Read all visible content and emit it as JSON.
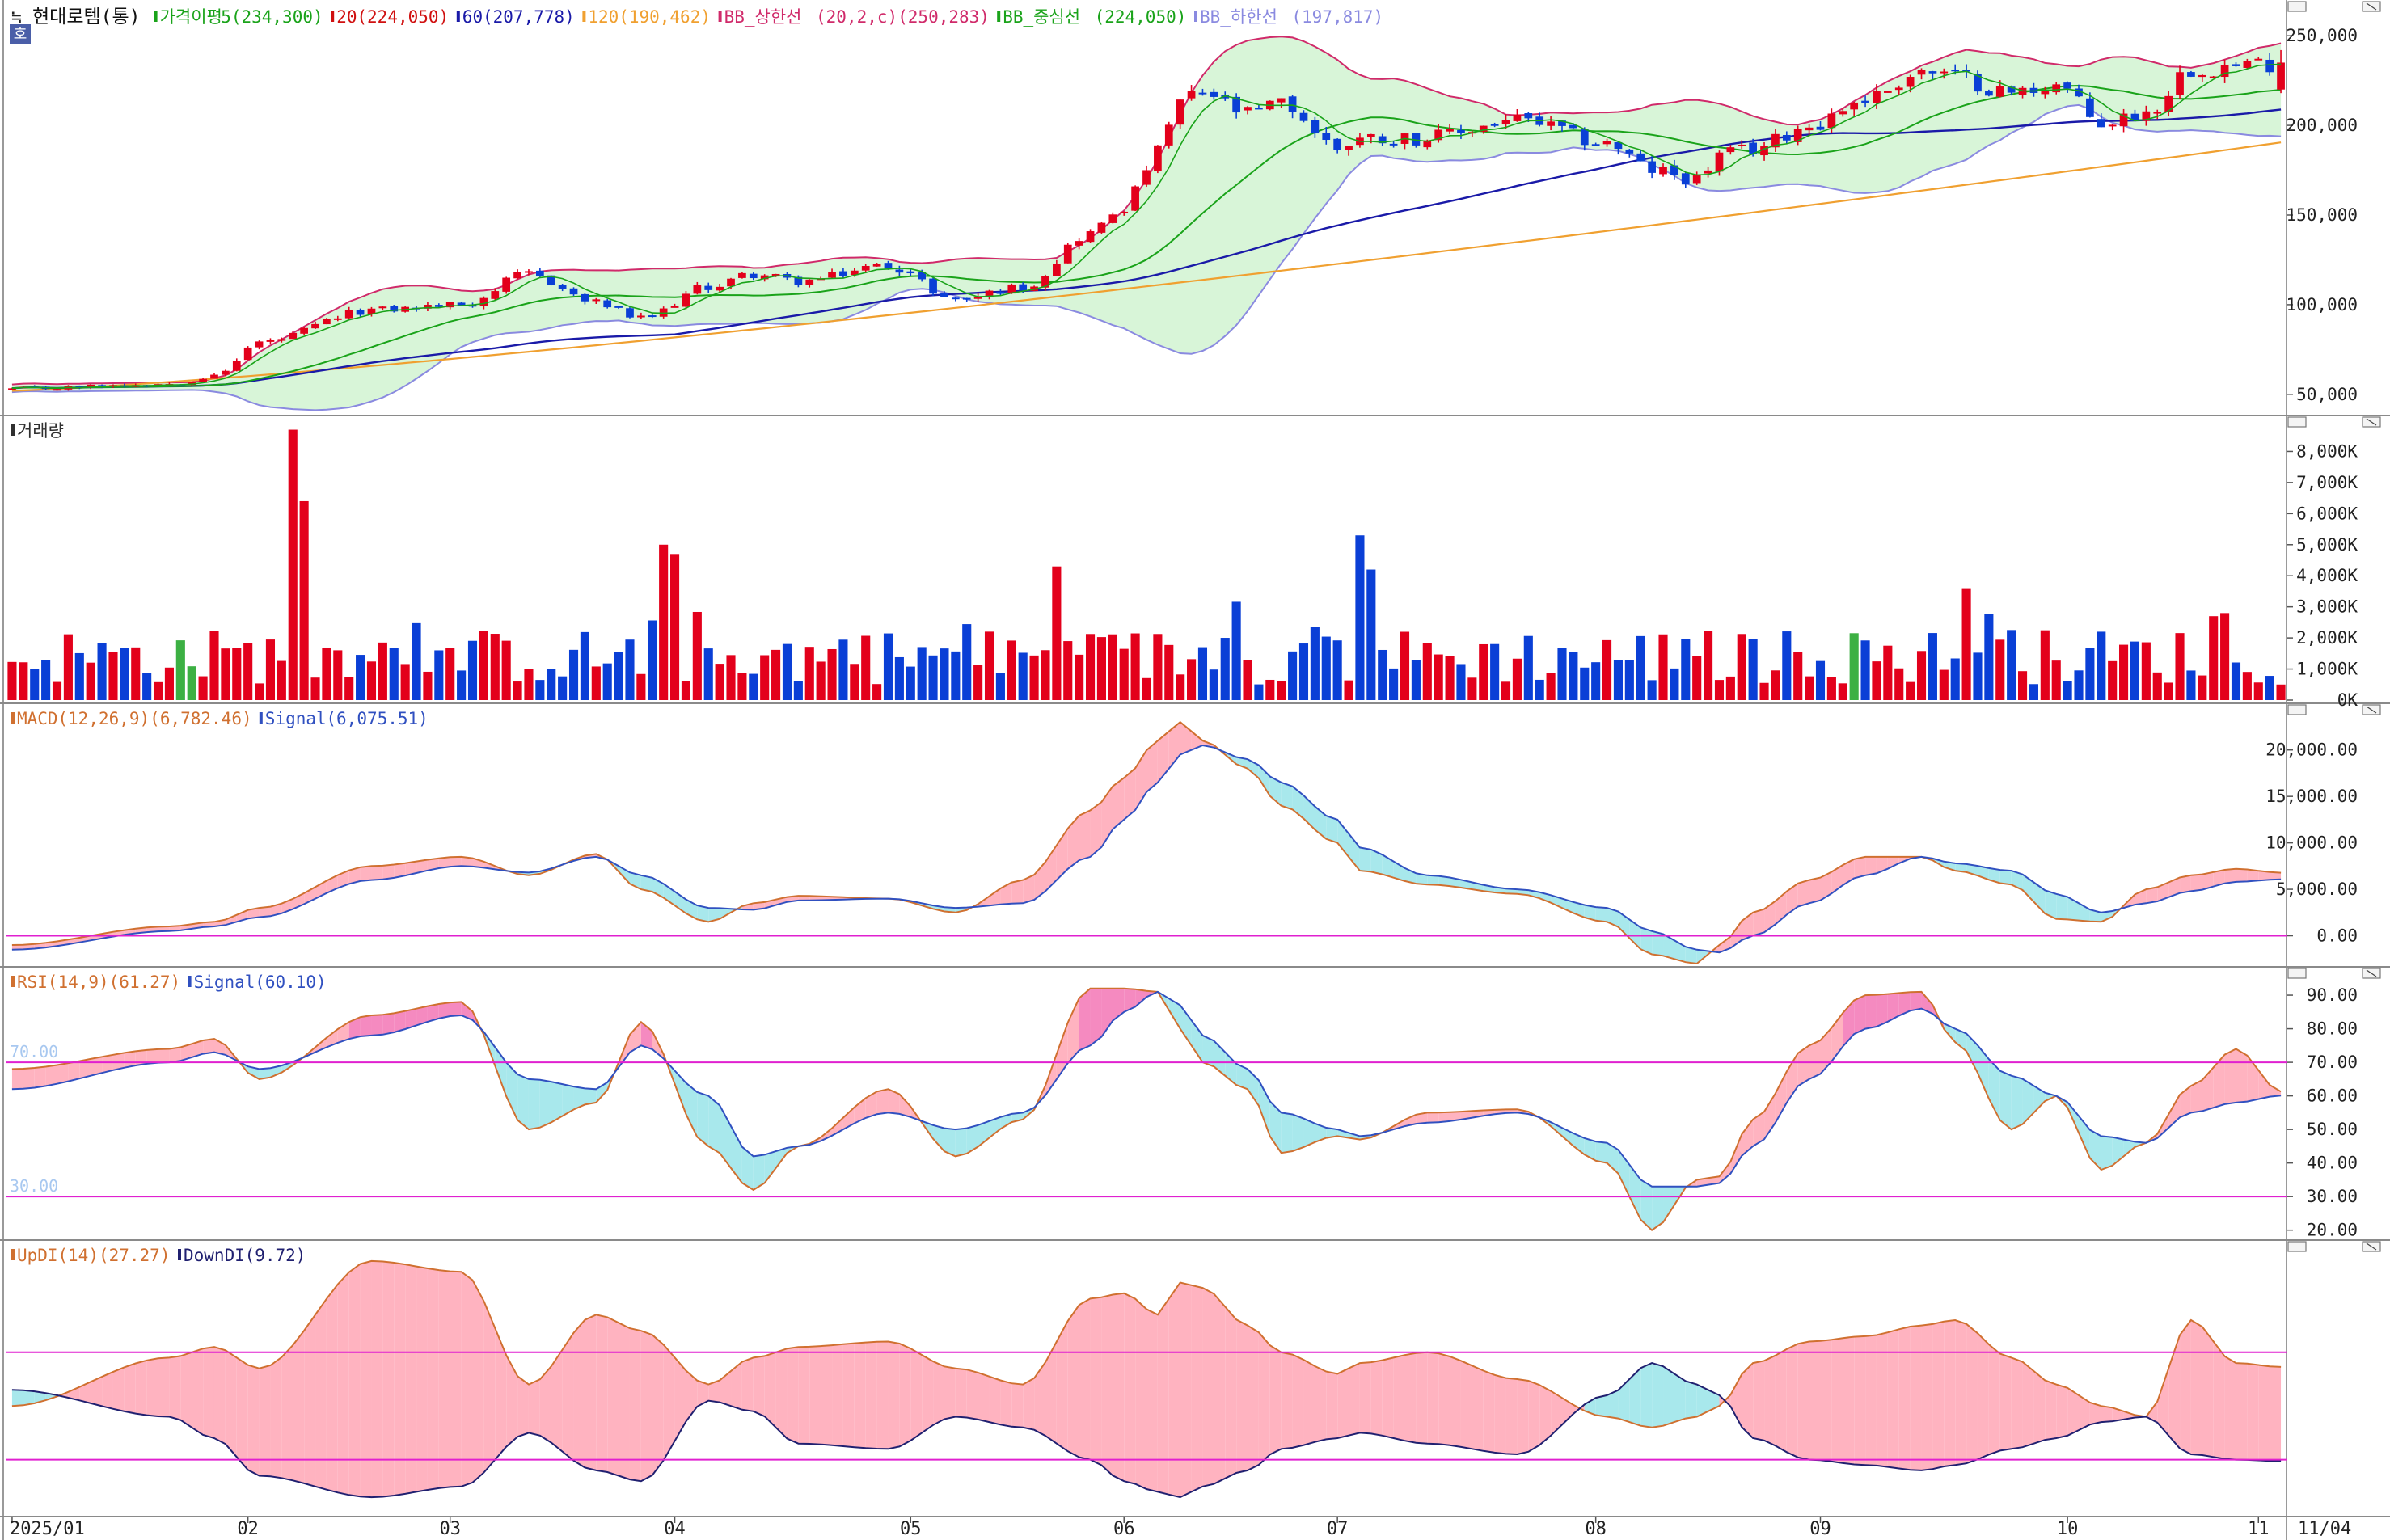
{
  "chart_data": {
    "type": "stock-indicator-chart",
    "stock_label": "현대로템(통)",
    "stock_marker": "≒",
    "period_badge": "호",
    "colors": {
      "up": "#e3001b",
      "down": "#0a3fd6",
      "flat": "#3cb043",
      "ma5": "#1aa31a",
      "ma20": "#d01010",
      "ma60": "#1a1aa8",
      "ma120": "#f0a030",
      "bb_upper": "#d02a6a",
      "bb_mid": "#1aa31a",
      "bb_lower": "#8a8ae0",
      "bb_fill": "#d8f5d8",
      "guide": "#e020d0",
      "pos_fill": "#ffb3c0",
      "neg_fill": "#a8e8ec",
      "rsi_strong": "#f58ac0",
      "macd_line": "#d07030",
      "signal_line": "#3050c0",
      "updi_line": "#d07030",
      "downdi_line": "#202070"
    },
    "price_legend": [
      {
        "label": "가격이평",
        "value": "5(234,300)",
        "color": "#1aa31a"
      },
      {
        "label": "20",
        "value": "(224,050)",
        "color": "#d01010"
      },
      {
        "label": "60",
        "value": "(207,778)",
        "color": "#1a1aa8"
      },
      {
        "label": "120",
        "value": "(190,462)",
        "color": "#f0a030"
      },
      {
        "label": "BB_상한선",
        "value": "(20,2,c)(250,283)",
        "color": "#d02a6a"
      },
      {
        "label": "BB_중심선",
        "value": "(224,050)",
        "color": "#1aa31a"
      },
      {
        "label": "BB_하한선",
        "value": "(197,817)",
        "color": "#8a8ae0"
      }
    ],
    "price_axis": {
      "ticks": [
        "250,000",
        "200,000",
        "150,000",
        "100,000",
        "50,000"
      ],
      "tick_values": [
        250000,
        200000,
        150000,
        100000,
        50000
      ],
      "ylim": [
        40000,
        260000
      ]
    },
    "volume_legend": [
      {
        "label": "거래량",
        "color": "#303030"
      }
    ],
    "volume_axis": {
      "ticks": [
        "8,000K",
        "7,000K",
        "6,000K",
        "5,000K",
        "4,000K",
        "3,000K",
        "2,000K",
        "1,000K",
        "0K"
      ],
      "tick_values": [
        8000,
        7000,
        6000,
        5000,
        4000,
        3000,
        2000,
        1000,
        0
      ],
      "ylim": [
        0,
        9000
      ]
    },
    "macd_legend": [
      {
        "label": "MACD",
        "value": "(12,26,9)(6,782.46)",
        "color": "#d07030"
      },
      {
        "label": "Signal",
        "value": "(6,075.51)",
        "color": "#3050c0"
      }
    ],
    "macd_axis": {
      "ticks": [
        "20,000.00",
        "15,000.00",
        "10,000.00",
        "5,000.00",
        "0.00"
      ],
      "tick_values": [
        20000,
        15000,
        10000,
        5000,
        0
      ],
      "ylim": [
        -3000,
        24500
      ]
    },
    "rsi_legend": [
      {
        "label": "RSI",
        "value": "(14,9)(61.27)",
        "color": "#d07030"
      },
      {
        "label": "Signal",
        "value": "(60.10)",
        "color": "#3050c0"
      }
    ],
    "rsi_axis": {
      "ticks": [
        "90.00",
        "80.00",
        "70.00",
        "60.00",
        "50.00",
        "40.00",
        "30.00",
        "20.00"
      ],
      "tick_values": [
        90,
        80,
        70,
        60,
        50,
        40,
        30,
        20
      ],
      "ylim": [
        18,
        97
      ]
    },
    "rsi_levels": [
      {
        "label": "70.00",
        "value": 70
      },
      {
        "label": "30.00",
        "value": 30
      }
    ],
    "dmi_legend": [
      {
        "label": "UpDI",
        "value": "(14)(27.27)",
        "color": "#d07030"
      },
      {
        "label": "DownDI",
        "value": "(9.72)",
        "color": "#202070"
      }
    ],
    "dmi_axis": {
      "ylim": [
        0,
        50
      ]
    },
    "dmi_levels": [
      {
        "value": 30
      },
      {
        "value": 10
      }
    ],
    "x_axis": {
      "labels": [
        "2025/01",
        "02",
        "03",
        "04",
        "05",
        "06",
        "07",
        "08",
        "09",
        "10",
        "11"
      ],
      "label_days": [
        0,
        21,
        39,
        59,
        80,
        99,
        118,
        141,
        161,
        183,
        200
      ],
      "last_label": "11/04",
      "n_days": 203
    },
    "series_days": [
      0,
      14,
      18,
      22,
      32,
      40,
      46,
      52,
      56,
      62,
      66,
      70,
      78,
      84,
      90,
      96,
      99,
      102,
      104,
      106,
      110,
      113,
      118,
      120,
      126,
      134,
      142,
      146,
      150,
      152,
      155,
      160,
      165,
      170,
      173,
      178,
      182,
      186,
      190,
      194,
      198,
      202
    ],
    "close_series": [
      53000,
      56000,
      60000,
      79000,
      97000,
      100000,
      117000,
      101000,
      92000,
      110000,
      117000,
      113000,
      122000,
      103000,
      110000,
      140000,
      155000,
      185000,
      213000,
      218000,
      206000,
      212000,
      188000,
      193000,
      193000,
      203000,
      190000,
      175000,
      170000,
      183000,
      187000,
      200000,
      215000,
      230000,
      227000,
      218000,
      223000,
      201000,
      207000,
      232000,
      233000,
      235000
    ],
    "macd_series": [
      -1000,
      1000,
      1500,
      3000,
      7500,
      8500,
      6500,
      8800,
      5000,
      1500,
      3500,
      4300,
      4000,
      2500,
      6000,
      13500,
      17000,
      21000,
      23000,
      21000,
      18000,
      14000,
      10000,
      7000,
      5500,
      4500,
      1500,
      -2000,
      -3000,
      -1000,
      2500,
      6000,
      8500,
      8500,
      7000,
      5500,
      1800,
      1500,
      5000,
      6500,
      7200,
      6782
    ],
    "signal_series": [
      -1500,
      500,
      1000,
      2000,
      6000,
      7500,
      6800,
      8500,
      6500,
      3000,
      2800,
      3800,
      4000,
      3000,
      3500,
      8500,
      12500,
      16500,
      19500,
      20500,
      19000,
      16500,
      12500,
      9500,
      6500,
      5000,
      3000,
      500,
      -1500,
      -1800,
      0,
      3500,
      6500,
      8500,
      7800,
      7000,
      4500,
      2500,
      3500,
      4800,
      5800,
      6075
    ],
    "rsi_series": [
      68,
      74,
      77,
      65,
      84,
      88,
      50,
      58,
      82,
      45,
      32,
      45,
      62,
      42,
      53,
      92,
      92,
      91,
      80,
      70,
      62,
      43,
      48,
      47,
      55,
      56,
      40,
      20,
      35,
      36,
      53,
      75,
      90,
      91,
      76,
      50,
      60,
      38,
      46,
      63,
      74,
      61.27
    ],
    "rsi_signal_series": [
      62,
      70,
      73,
      68,
      78,
      84,
      65,
      62,
      75,
      60,
      42,
      45,
      55,
      50,
      55,
      75,
      85,
      91,
      87,
      78,
      68,
      55,
      50,
      48,
      52,
      55,
      46,
      33,
      33,
      34,
      45,
      65,
      80,
      86,
      80,
      66,
      60,
      48,
      46,
      55,
      58,
      60.1
    ],
    "updi_series": [
      20,
      29,
      31,
      27,
      47,
      45,
      24,
      37,
      34,
      24,
      29,
      31,
      32,
      27,
      24,
      40,
      41,
      37,
      43,
      42,
      35,
      30,
      26,
      28,
      30,
      25,
      18,
      16,
      18,
      20,
      28,
      32,
      33,
      35,
      36,
      29,
      24,
      20,
      18,
      36,
      28,
      27.27
    ],
    "downdi_series": [
      23,
      18,
      14,
      7,
      3,
      5,
      15,
      8,
      6,
      21,
      19,
      13,
      12,
      18,
      16,
      10,
      6,
      4,
      3,
      5,
      8,
      12,
      14,
      15,
      13,
      11,
      22,
      28,
      24,
      22,
      14,
      10,
      9,
      8,
      9,
      12,
      14,
      17,
      18,
      11,
      10,
      9.72
    ],
    "volume_spikes": [
      {
        "day": 25,
        "value": 8700,
        "up": true
      },
      {
        "day": 26,
        "value": 6400,
        "up": true
      },
      {
        "day": 58,
        "value": 5000,
        "up": true
      },
      {
        "day": 59,
        "value": 4700,
        "up": true
      },
      {
        "day": 93,
        "value": 4300,
        "up": true
      },
      {
        "day": 120,
        "value": 5300,
        "up": false
      },
      {
        "day": 121,
        "value": 4200,
        "up": false
      },
      {
        "day": 174,
        "value": 3600,
        "up": true
      },
      {
        "day": 196,
        "value": 2700,
        "up": true
      },
      {
        "day": 197,
        "value": 2800,
        "up": true
      }
    ]
  }
}
